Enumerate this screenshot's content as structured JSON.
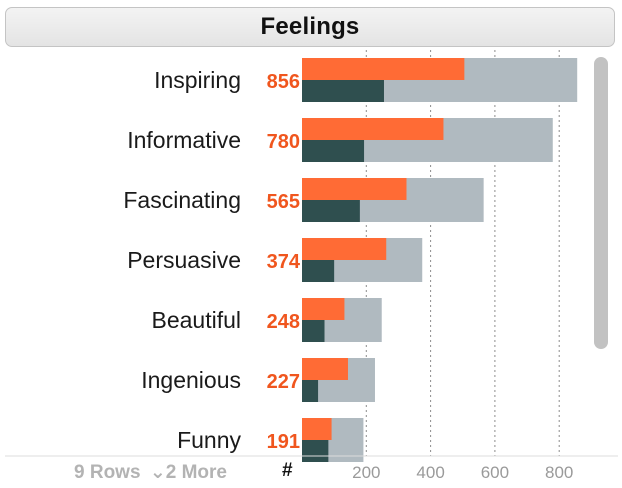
{
  "header": {
    "title": "Feelings"
  },
  "footer": {
    "rows_label": "9 Rows",
    "more_label": "2 More",
    "count_header": "#"
  },
  "colors": {
    "orange": "#ff6b35",
    "dark": "#2f4f4f",
    "light": "#b0bac0",
    "value_text": "#f0561e"
  },
  "chart_data": {
    "type": "bar",
    "categories": [
      "Inspiring",
      "Informative",
      "Fascinating",
      "Persuasive",
      "Beautiful",
      "Ingenious",
      "Funny"
    ],
    "series": [
      {
        "values": [
          856,
          780,
          565,
          374,
          248,
          227,
          191
        ]
      },
      {
        "values": [
          505,
          440,
          325,
          262,
          132,
          143,
          92
        ]
      },
      {
        "values": [
          255,
          193,
          180,
          100,
          70,
          50,
          82
        ]
      }
    ],
    "value_labels": [
      "856",
      "780",
      "565",
      "374",
      "248",
      "227",
      "191"
    ],
    "xticks": [
      200,
      400,
      600,
      800
    ],
    "xlim": [
      0,
      890
    ],
    "grid": true
  }
}
